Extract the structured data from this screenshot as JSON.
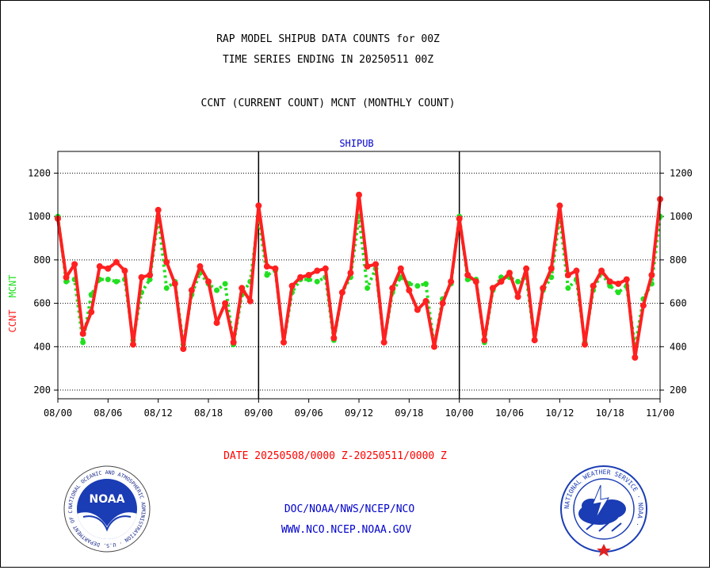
{
  "chart_data": {
    "type": "line",
    "title": "RAP MODEL SHIPUB DATA COUNTS for 00Z",
    "subtitle": "TIME SERIES ENDING IN 20250511 00Z",
    "legend_text": "CCNT (CURRENT COUNT) MCNT (MONTHLY COUNT)",
    "panel_label": "SHIPUB",
    "ylabel_ccnt": "CCNT",
    "ylabel_mcnt": "MCNT",
    "date_range": "DATE 20250508/0000 Z-20250511/0000 Z",
    "ylim": [
      160,
      1300
    ],
    "yticks": [
      200,
      400,
      600,
      800,
      1000,
      1200
    ],
    "ytick_labels": [
      "200",
      "400",
      "600",
      "800",
      "1000",
      "1200"
    ],
    "xtick_labels": [
      "08/00",
      "08/06",
      "08/12",
      "08/18",
      "09/00",
      "09/06",
      "09/12",
      "09/18",
      "10/00",
      "10/06",
      "10/12",
      "10/18",
      "11/00"
    ],
    "x_range": [
      0,
      72
    ],
    "separators_x": [
      24,
      48
    ],
    "grid": true,
    "colors": {
      "ccnt": "#ff2020",
      "mcnt": "#20e020",
      "axis": "#000000",
      "panel_label": "#0000cc",
      "footer": "#0000cc",
      "date": "#ff0000"
    },
    "x": [
      0,
      1,
      2,
      3,
      4,
      5,
      6,
      7,
      8,
      9,
      10,
      11,
      12,
      13,
      14,
      15,
      16,
      17,
      18,
      19,
      20,
      21,
      22,
      23,
      24,
      25,
      26,
      27,
      28,
      29,
      30,
      31,
      32,
      33,
      34,
      35,
      36,
      37,
      38,
      39,
      40,
      41,
      42,
      43,
      44,
      45,
      46,
      47,
      48,
      49,
      50,
      51,
      52,
      53,
      54,
      55,
      56,
      57,
      58,
      59,
      60,
      61,
      62,
      63,
      64,
      65,
      66,
      67,
      68,
      69,
      70,
      71,
      72
    ],
    "series": [
      {
        "name": "CCNT",
        "values": [
          990,
          720,
          780,
          460,
          560,
          770,
          760,
          790,
          750,
          410,
          720,
          730,
          1030,
          790,
          690,
          390,
          660,
          770,
          700,
          510,
          600,
          420,
          670,
          610,
          1050,
          770,
          760,
          420,
          680,
          720,
          730,
          750,
          760,
          440,
          650,
          740,
          1100,
          770,
          780,
          420,
          670,
          760,
          660,
          570,
          610,
          400,
          600,
          700,
          990,
          730,
          700,
          430,
          670,
          700,
          740,
          630,
          760,
          430,
          670,
          760,
          1050,
          730,
          750,
          410,
          680,
          750,
          700,
          690,
          710,
          350,
          590,
          730,
          1080
        ]
      },
      {
        "name": "MCNT",
        "values": [
          1000,
          700,
          710,
          420,
          640,
          710,
          710,
          700,
          710,
          430,
          650,
          710,
          1000,
          670,
          700,
          410,
          640,
          740,
          690,
          660,
          690,
          410,
          640,
          700,
          1000,
          730,
          750,
          420,
          650,
          710,
          710,
          700,
          720,
          430,
          650,
          720,
          1000,
          670,
          760,
          420,
          650,
          720,
          690,
          680,
          690,
          400,
          620,
          690,
          1000,
          710,
          710,
          420,
          660,
          720,
          720,
          700,
          720,
          430,
          660,
          720,
          1000,
          670,
          710,
          420,
          660,
          740,
          680,
          650,
          680,
          400,
          620,
          690,
          1000
        ]
      }
    ]
  },
  "footer": {
    "org": "DOC/NOAA/NWS/NCEP/NCO",
    "url": "WWW.NCO.NCEP.NOAA.GOV",
    "noaa_logo_word": "NOAA",
    "noaa_ring_text": "NATIONAL OCEANIC AND ATMOSPHERIC ADMINISTRATION · U.S. DEPARTMENT OF COMMERCE ·",
    "nws_ring_text": "NATIONAL WEATHER SERVICE · NOAA ·"
  }
}
